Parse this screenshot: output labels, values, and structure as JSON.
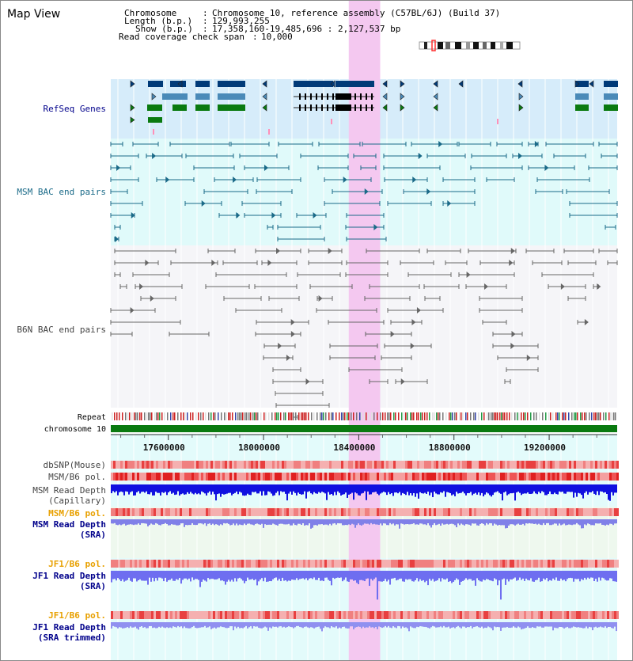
{
  "app": {
    "title": "Map View"
  },
  "info": {
    "chromosome_label": "Chromosome",
    "chromosome_value": "Chromosome 10, reference assembly (C57BL/6J) (Build 37)",
    "length_label": "Length (b.p.)",
    "length_value": "129,993,255",
    "show_label": "Show (b.p.)",
    "show_value": "17,358,160-19,485,696 : 2,127,537 bp",
    "coverage_label": "Read coverage check span",
    "coverage_value": "10,000"
  },
  "tracks": {
    "refseq": "RefSeq Genes",
    "msm_bac": "MSM BAC end pairs",
    "b6n_bac": "B6N BAC end pairs",
    "repeat": "Repeat",
    "chrom": "chromosome 10",
    "dbsnp": "dbSNP(Mouse)",
    "msm_pol": "MSM/B6 pol.",
    "msm_depth_cap_1": "MSM Read Depth",
    "msm_depth_cap_2": "(Capillary)",
    "msm_pol_sra": "MSM/B6 pol.",
    "msm_depth_sra_1": "MSM Read Depth",
    "msm_depth_sra_2": "(SRA)",
    "jf1_pol": "JF1/B6 pol.",
    "jf1_depth_1": "JF1 Read Depth",
    "jf1_depth_2": "(SRA)",
    "jf1_pol_trim": "JF1/B6 pol.",
    "jf1_trim_1": "JF1 Read Depth",
    "jf1_trim_2": "(SRA trimmed)"
  },
  "axis": {
    "ticks": [
      {
        "value": 17600000,
        "label": "17600000"
      },
      {
        "value": 18000000,
        "label": "18000000"
      },
      {
        "value": 18400000,
        "label": "18400000"
      },
      {
        "value": 18800000,
        "label": "18800000"
      },
      {
        "value": 19200000,
        "label": "19200000"
      }
    ],
    "range": [
      17358160,
      19485696
    ]
  },
  "highlight": {
    "start": 18358000,
    "end": 18490000
  },
  "colors": {
    "refseq_navy": "#003a78",
    "refseq_steel": "#4a8ab8",
    "refseq_green": "#0a7a10",
    "msm_bac": "#1a6a88",
    "b6n_bac": "#666666",
    "highlight": "#f4c8f0",
    "label_blue": "#00008b",
    "label_teal": "#1a6a88",
    "label_orange": "#e8a000",
    "label_gray": "#444444"
  }
}
